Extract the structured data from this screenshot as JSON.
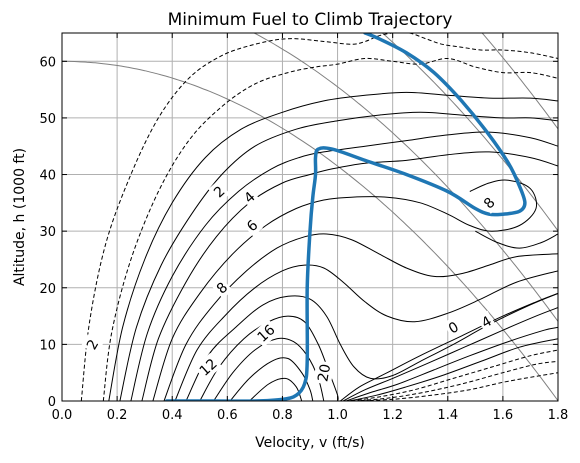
{
  "chart_data": {
    "type": "contour",
    "title": "Minimum Fuel to Climb Trajectory",
    "xlabel": "Velocity, v (ft/s)",
    "ylabel": "Altitude, h (1000 ft)",
    "xlim": [
      0.0,
      1.8
    ],
    "ylim": [
      0,
      65
    ],
    "xticks": [
      "0.0",
      "0.2",
      "0.4",
      "0.6",
      "0.8",
      "1.0",
      "1.2",
      "1.4",
      "1.6",
      "1.8"
    ],
    "yticks": [
      "0",
      "10",
      "20",
      "30",
      "40",
      "50",
      "60"
    ],
    "grid": true,
    "colors": {
      "trajectory": "#1f77b4",
      "contour": "#000000",
      "energy_lines": "#808080",
      "grid": "#b0b0b0"
    },
    "energy_curves_h0": [
      60,
      74,
      90,
      108,
      128,
      150,
      175
    ],
    "contour_labels": [
      {
        "text": "2",
        "x": 0.57,
        "y": 37,
        "angle": -42
      },
      {
        "text": "4",
        "x": 0.68,
        "y": 36,
        "angle": -42
      },
      {
        "text": "6",
        "x": 0.69,
        "y": 31,
        "angle": -42
      },
      {
        "text": "8",
        "x": 0.58,
        "y": 20,
        "angle": -42
      },
      {
        "text": "16",
        "x": 0.74,
        "y": 12,
        "angle": -42
      },
      {
        "text": "12",
        "x": 0.53,
        "y": 6,
        "angle": -42
      },
      {
        "text": "20",
        "x": 0.95,
        "y": 5,
        "angle": -80
      },
      {
        "text": "2",
        "x": 0.11,
        "y": 10,
        "angle": -60
      },
      {
        "text": "0",
        "x": 1.42,
        "y": 13,
        "angle": -30
      },
      {
        "text": "4",
        "x": 1.54,
        "y": 14,
        "angle": -30
      },
      {
        "text": "8",
        "x": 1.55,
        "y": 35,
        "angle": -45
      }
    ],
    "contours": [
      {
        "style": "dashed",
        "points": [
          [
            0.07,
            0
          ],
          [
            0.1,
            14
          ],
          [
            0.16,
            28
          ],
          [
            0.25,
            40
          ],
          [
            0.35,
            50
          ],
          [
            0.46,
            57
          ],
          [
            0.58,
            61
          ],
          [
            0.7,
            63
          ],
          [
            0.82,
            64
          ],
          [
            0.95,
            63.5
          ],
          [
            1.05,
            63
          ],
          [
            1.1,
            63.5
          ],
          [
            1.15,
            64.5
          ],
          [
            1.2,
            65
          ],
          [
            1.26,
            65
          ],
          [
            1.32,
            64
          ],
          [
            1.38,
            63
          ],
          [
            1.45,
            62.5
          ],
          [
            1.52,
            62
          ],
          [
            1.6,
            62
          ],
          [
            1.7,
            61.5
          ],
          [
            1.8,
            60.5
          ]
        ]
      },
      {
        "style": "dashed",
        "points": [
          [
            0.15,
            0
          ],
          [
            0.18,
            12
          ],
          [
            0.25,
            25
          ],
          [
            0.35,
            37
          ],
          [
            0.46,
            46
          ],
          [
            0.58,
            52
          ],
          [
            0.7,
            56
          ],
          [
            0.82,
            58
          ],
          [
            0.92,
            59
          ],
          [
            1.0,
            59.5
          ],
          [
            1.1,
            60.5
          ],
          [
            1.2,
            60
          ],
          [
            1.3,
            59.5
          ],
          [
            1.4,
            60.5
          ],
          [
            1.5,
            59
          ],
          [
            1.6,
            58
          ],
          [
            1.7,
            58
          ],
          [
            1.8,
            57
          ]
        ]
      },
      {
        "style": "solid",
        "points": [
          [
            0.17,
            0
          ],
          [
            0.22,
            13
          ],
          [
            0.3,
            25
          ],
          [
            0.4,
            35
          ],
          [
            0.52,
            43
          ],
          [
            0.65,
            48
          ],
          [
            0.8,
            51
          ],
          [
            0.95,
            53
          ],
          [
            1.1,
            54
          ],
          [
            1.25,
            54.5
          ],
          [
            1.4,
            54
          ],
          [
            1.55,
            53.5
          ],
          [
            1.7,
            53.5
          ],
          [
            1.8,
            53
          ]
        ]
      },
      {
        "style": "solid",
        "points": [
          [
            0.21,
            0
          ],
          [
            0.27,
            13
          ],
          [
            0.36,
            24
          ],
          [
            0.47,
            33
          ],
          [
            0.58,
            40
          ],
          [
            0.7,
            45
          ],
          [
            0.85,
            48
          ],
          [
            1.0,
            49.5
          ],
          [
            1.15,
            50.5
          ],
          [
            1.3,
            51
          ],
          [
            1.45,
            50.5
          ],
          [
            1.6,
            50
          ],
          [
            1.7,
            50
          ],
          [
            1.8,
            49.5
          ]
        ]
      },
      {
        "style": "solid",
        "points": [
          [
            0.25,
            0
          ],
          [
            0.31,
            12
          ],
          [
            0.4,
            22
          ],
          [
            0.52,
            31
          ],
          [
            0.64,
            37
          ],
          [
            0.76,
            41
          ],
          [
            0.86,
            43
          ],
          [
            0.95,
            44
          ],
          [
            1.1,
            45
          ],
          [
            1.25,
            46
          ],
          [
            1.4,
            47
          ],
          [
            1.55,
            47.5
          ],
          [
            1.7,
            46.5
          ],
          [
            1.8,
            45
          ]
        ]
      },
      {
        "style": "solid",
        "points": [
          [
            0.29,
            0
          ],
          [
            0.35,
            11
          ],
          [
            0.45,
            21
          ],
          [
            0.56,
            29
          ],
          [
            0.68,
            35
          ],
          [
            0.8,
            38.5
          ],
          [
            0.9,
            40
          ],
          [
            0.98,
            41
          ],
          [
            1.1,
            42
          ],
          [
            1.25,
            42.5
          ],
          [
            1.4,
            43.5
          ],
          [
            1.55,
            44
          ],
          [
            1.7,
            43
          ],
          [
            1.8,
            41.5
          ]
        ]
      },
      {
        "style": "solid",
        "points": [
          [
            0.33,
            0
          ],
          [
            0.4,
            11
          ],
          [
            0.5,
            19
          ],
          [
            0.62,
            26
          ],
          [
            0.74,
            31
          ],
          [
            0.85,
            34
          ],
          [
            0.95,
            35.5
          ],
          [
            1.05,
            36
          ],
          [
            1.18,
            36
          ],
          [
            1.3,
            35
          ],
          [
            1.4,
            33
          ],
          [
            1.48,
            31
          ],
          [
            1.56,
            30
          ],
          [
            1.66,
            31
          ],
          [
            1.72,
            34
          ],
          [
            1.7,
            37.5
          ],
          [
            1.62,
            39
          ],
          [
            1.55,
            38.5
          ],
          [
            1.48,
            37
          ]
        ]
      },
      {
        "style": "solid",
        "points": [
          [
            1.5,
            30
          ],
          [
            1.58,
            28
          ],
          [
            1.66,
            27
          ],
          [
            1.74,
            28
          ],
          [
            1.8,
            29.5
          ]
        ]
      },
      {
        "style": "solid",
        "points": [
          [
            0.37,
            0
          ],
          [
            0.45,
            10
          ],
          [
            0.55,
            17
          ],
          [
            0.67,
            23
          ],
          [
            0.78,
            27
          ],
          [
            0.88,
            29
          ],
          [
            0.96,
            29.5
          ],
          [
            1.05,
            28.5
          ],
          [
            1.15,
            26
          ],
          [
            1.25,
            23.5
          ],
          [
            1.35,
            22
          ],
          [
            1.45,
            22.5
          ],
          [
            1.55,
            24
          ],
          [
            1.65,
            25.5
          ],
          [
            1.8,
            26
          ]
        ]
      },
      {
        "style": "solid",
        "points": [
          [
            0.41,
            0
          ],
          [
            0.49,
            9
          ],
          [
            0.59,
            15
          ],
          [
            0.7,
            20
          ],
          [
            0.8,
            23
          ],
          [
            0.88,
            24
          ],
          [
            0.95,
            23.5
          ],
          [
            1.02,
            21
          ],
          [
            1.1,
            17.5
          ],
          [
            1.18,
            15
          ],
          [
            1.28,
            14
          ],
          [
            1.4,
            15.5
          ],
          [
            1.52,
            18
          ],
          [
            1.65,
            21
          ],
          [
            1.8,
            23
          ]
        ]
      },
      {
        "style": "solid",
        "points": [
          [
            0.45,
            0
          ],
          [
            0.53,
            8
          ],
          [
            0.63,
            13
          ],
          [
            0.73,
            17
          ],
          [
            0.82,
            18.5
          ],
          [
            0.9,
            18
          ],
          [
            0.96,
            15
          ],
          [
            1.01,
            10
          ],
          [
            1.06,
            6
          ],
          [
            1.12,
            4
          ],
          [
            1.2,
            4.5
          ],
          [
            1.3,
            7
          ],
          [
            1.42,
            10
          ],
          [
            1.55,
            13.5
          ],
          [
            1.7,
            17
          ],
          [
            1.8,
            19
          ]
        ]
      },
      {
        "style": "solid",
        "points": [
          [
            0.5,
            0
          ],
          [
            0.57,
            6
          ],
          [
            0.66,
            11
          ],
          [
            0.75,
            14
          ],
          [
            0.82,
            15
          ],
          [
            0.88,
            14
          ],
          [
            0.93,
            10
          ],
          [
            0.97,
            5
          ],
          [
            1.0,
            1
          ],
          [
            1.0,
            0
          ]
        ]
      },
      {
        "style": "solid",
        "points": [
          [
            1.01,
            0
          ],
          [
            1.08,
            2.5
          ],
          [
            1.18,
            5
          ],
          [
            1.3,
            8
          ],
          [
            1.45,
            11.5
          ],
          [
            1.6,
            15
          ],
          [
            1.72,
            17.5
          ],
          [
            1.8,
            19
          ]
        ]
      },
      {
        "style": "solid",
        "points": [
          [
            0.55,
            0
          ],
          [
            0.62,
            5
          ],
          [
            0.7,
            9
          ],
          [
            0.78,
            11
          ],
          [
            0.84,
            10.5
          ],
          [
            0.89,
            8
          ],
          [
            0.93,
            4
          ],
          [
            0.95,
            0
          ]
        ]
      },
      {
        "style": "solid",
        "points": [
          [
            1.02,
            0
          ],
          [
            1.1,
            2
          ],
          [
            1.2,
            4
          ],
          [
            1.32,
            6.5
          ],
          [
            1.46,
            9.5
          ],
          [
            1.6,
            12.5
          ],
          [
            1.72,
            15
          ],
          [
            1.8,
            16.5
          ]
        ]
      },
      {
        "style": "solid",
        "points": [
          [
            0.61,
            0
          ],
          [
            0.68,
            4
          ],
          [
            0.76,
            7
          ],
          [
            0.82,
            7.5
          ],
          [
            0.87,
            5
          ],
          [
            0.9,
            2
          ],
          [
            0.91,
            0
          ]
        ]
      },
      {
        "style": "solid",
        "points": [
          [
            1.03,
            0
          ],
          [
            1.12,
            1.5
          ],
          [
            1.22,
            3
          ],
          [
            1.35,
            5.5
          ],
          [
            1.48,
            8
          ],
          [
            1.62,
            10.5
          ],
          [
            1.75,
            12.5
          ],
          [
            1.8,
            13
          ]
        ]
      },
      {
        "style": "solid",
        "points": [
          [
            0.68,
            0
          ],
          [
            0.75,
            3
          ],
          [
            0.81,
            4
          ],
          [
            0.85,
            2.5
          ],
          [
            0.87,
            0
          ]
        ]
      },
      {
        "style": "solid",
        "points": [
          [
            1.04,
            0
          ],
          [
            1.14,
            1
          ],
          [
            1.25,
            2.5
          ],
          [
            1.38,
            4.5
          ],
          [
            1.52,
            7
          ],
          [
            1.66,
            9.5
          ],
          [
            1.8,
            11
          ]
        ]
      },
      {
        "style": "dashed",
        "points": [
          [
            1.05,
            0
          ],
          [
            1.16,
            0.8
          ],
          [
            1.28,
            2
          ],
          [
            1.42,
            4
          ],
          [
            1.56,
            6
          ],
          [
            1.7,
            8
          ],
          [
            1.8,
            9
          ]
        ]
      },
      {
        "style": "dashed",
        "points": [
          [
            1.06,
            0
          ],
          [
            1.18,
            0.5
          ],
          [
            1.31,
            1.5
          ],
          [
            1.45,
            3
          ],
          [
            1.6,
            5
          ],
          [
            1.72,
            6.5
          ],
          [
            1.8,
            7
          ]
        ]
      },
      {
        "style": "dashed",
        "points": [
          [
            1.07,
            0
          ],
          [
            1.2,
            0.3
          ],
          [
            1.34,
            1
          ],
          [
            1.48,
            2
          ],
          [
            1.62,
            3.5
          ],
          [
            1.8,
            5
          ]
        ]
      }
    ],
    "trajectory": [
      [
        0.38,
        0
      ],
      [
        0.55,
        0
      ],
      [
        0.7,
        0
      ],
      [
        0.8,
        0.3
      ],
      [
        0.85,
        1
      ],
      [
        0.88,
        3
      ],
      [
        0.89,
        7
      ],
      [
        0.89,
        20
      ],
      [
        0.9,
        30
      ],
      [
        0.91,
        36
      ],
      [
        0.92,
        40
      ],
      [
        0.92,
        43
      ],
      [
        0.93,
        44.5
      ],
      [
        0.98,
        44.5
      ],
      [
        1.1,
        42.5
      ],
      [
        1.25,
        40
      ],
      [
        1.4,
        37
      ],
      [
        1.5,
        34
      ],
      [
        1.55,
        33
      ],
      [
        1.6,
        33
      ],
      [
        1.66,
        33.5
      ],
      [
        1.68,
        35
      ],
      [
        1.66,
        38
      ],
      [
        1.62,
        42
      ],
      [
        1.55,
        47
      ],
      [
        1.45,
        53
      ],
      [
        1.35,
        58
      ],
      [
        1.25,
        61.5
      ],
      [
        1.15,
        64
      ],
      [
        1.1,
        65
      ]
    ]
  }
}
